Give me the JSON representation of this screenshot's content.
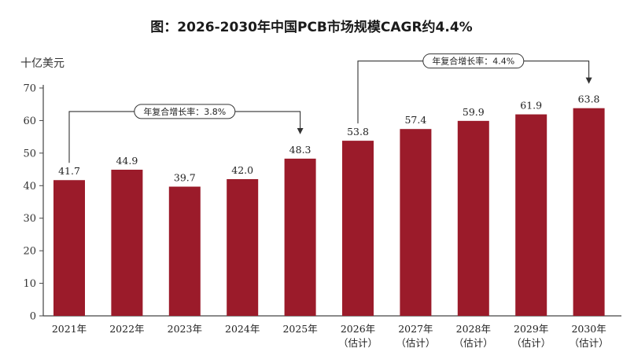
{
  "chart_data": {
    "type": "bar",
    "title": "图：2026-2030年中国PCB市场规模CAGR约4.4%",
    "ylabel": "十亿美元",
    "ylim": [
      0,
      70
    ],
    "yticks": [
      "0",
      "10",
      "20",
      "30",
      "40",
      "50",
      "60",
      "70"
    ],
    "categories": [
      "2021年",
      "2022年",
      "2023年",
      "2024年",
      "2025年",
      "2026年",
      "2027年",
      "2028年",
      "2029年",
      "2030年"
    ],
    "category_notes": [
      "",
      "",
      "",
      "",
      "",
      "（估计）",
      "（估计）",
      "（估计）",
      "（估计）",
      "（估计）"
    ],
    "values": [
      41.7,
      44.9,
      39.7,
      42.0,
      48.3,
      53.8,
      57.4,
      59.9,
      61.9,
      63.8
    ],
    "value_labels": [
      "41.7",
      "44.9",
      "39.7",
      "42.0",
      "48.3",
      "53.8",
      "57.4",
      "59.9",
      "61.9",
      "63.8"
    ],
    "bar_color": "#9b1b2a",
    "annotations": [
      {
        "text": "年复合增长率：3.8%",
        "from": 0,
        "to": 4
      },
      {
        "text": "年复合增长率：4.4%",
        "from": 5,
        "to": 9
      }
    ],
    "grid": false,
    "legend": "none"
  }
}
